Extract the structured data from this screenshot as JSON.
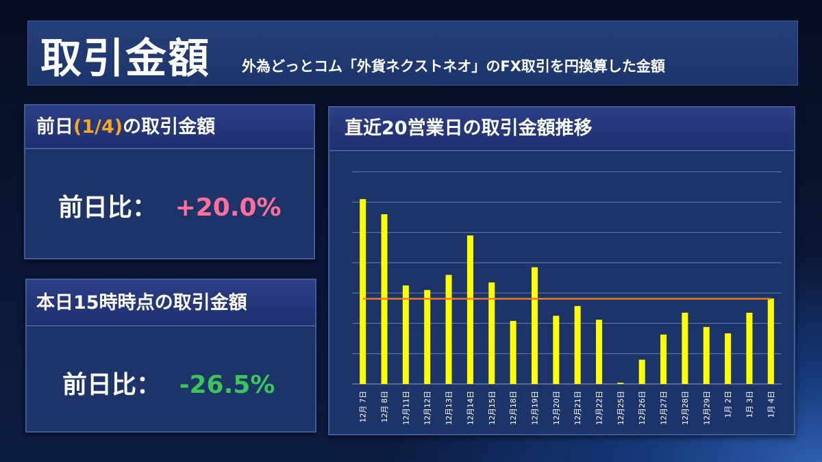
{
  "header": {
    "title": "取引金額",
    "subtitle": "外為どっとコム「外貨ネクストネオ」のFX取引を円換算した金額"
  },
  "prev_day_panel": {
    "title_prefix": "前日",
    "title_date": "(1/4)",
    "title_suffix": "の取引金額",
    "label": "前日比：",
    "value": "+20.0%",
    "value_color": "#ff6f9c"
  },
  "today_panel": {
    "title": "本日15時時点の取引金額",
    "label": "前日比：",
    "value": "-26.5%",
    "value_color": "#3cc55b"
  },
  "chart_panel": {
    "title": "直近20営業日の取引金額推移"
  },
  "chart_data": {
    "type": "bar",
    "categories": [
      "12月 7日",
      "12月 8日",
      "12月11日",
      "12月12日",
      "12月13日",
      "12月14日",
      "12月15日",
      "12月18日",
      "12月19日",
      "12月20日",
      "12月21日",
      "12月22日",
      "12月25日",
      "12月26日",
      "12月27日",
      "12月28日",
      "12月29日",
      "1月 2日",
      "1月 3日",
      "1月 4日"
    ],
    "series": [
      {
        "values": [
          6.1,
          5.6,
          3.25,
          3.1,
          3.6,
          4.9,
          3.35,
          2.08,
          3.85,
          2.25,
          2.57,
          2.12,
          0.04,
          0.8,
          1.63,
          2.35,
          1.88,
          1.67,
          2.35,
          2.82
        ]
      },
      {
        "type": "line",
        "values": [
          2.81,
          2.81,
          2.81,
          2.81,
          2.81,
          2.81,
          2.81,
          2.81,
          2.81,
          2.81,
          2.81,
          2.81,
          2.81,
          2.81,
          2.81,
          2.81,
          2.81,
          2.81,
          2.81,
          2.81
        ]
      }
    ],
    "ylim": [
      0,
      7
    ],
    "grid": true,
    "bar_color": "#ffff00",
    "line_color": "#f07a28"
  }
}
